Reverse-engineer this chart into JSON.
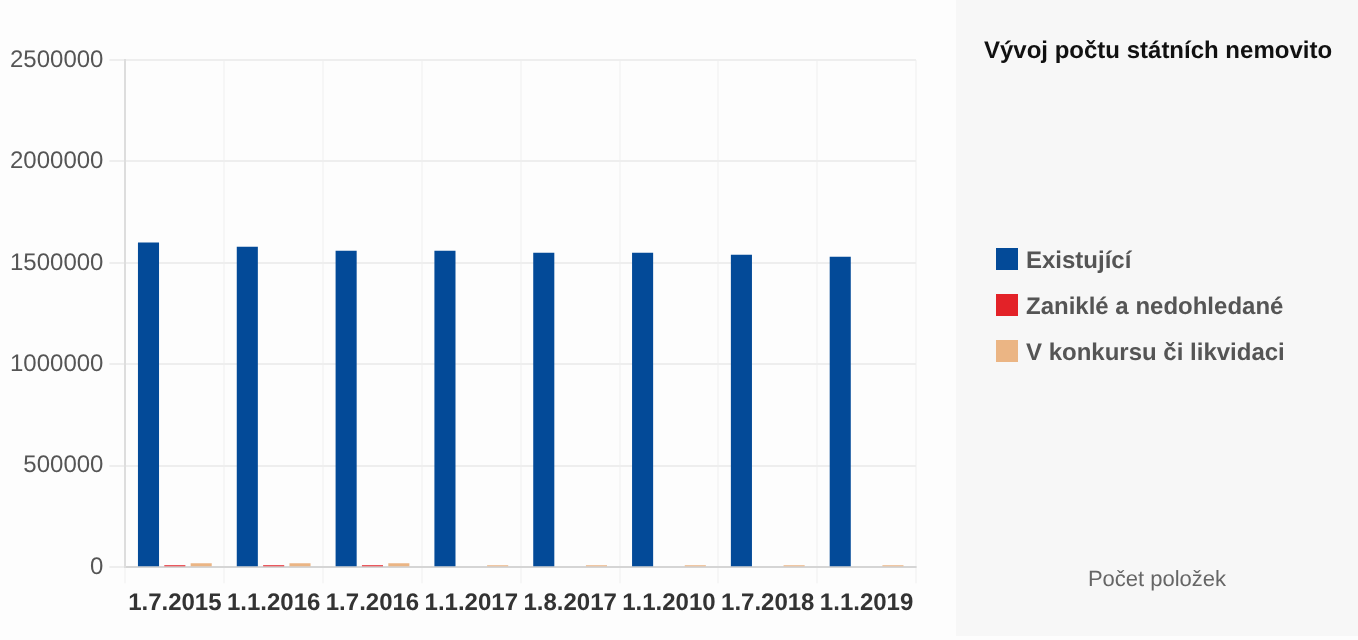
{
  "chart_data": {
    "type": "bar",
    "title": "Vývoj počtu státních nemovito",
    "categories": [
      "1.7.2015",
      "1.1.2016",
      "1.7.2016",
      "1.1.2017",
      "1.8.2017",
      "1.1.2010",
      "1.7.2018",
      "1.1.2019"
    ],
    "series": [
      {
        "name": "Existující",
        "color": "#034a98",
        "values": [
          1600000,
          1580000,
          1560000,
          1560000,
          1550000,
          1550000,
          1540000,
          1530000
        ]
      },
      {
        "name": "Zaniklé a nedohledané",
        "color": "#e32228",
        "values": [
          10000,
          10000,
          10000,
          0,
          0,
          0,
          0,
          0
        ]
      },
      {
        "name": "V konkursu či likvidaci",
        "color": "#ebb584",
        "values": [
          20000,
          20000,
          20000,
          10000,
          10000,
          10000,
          10000,
          10000
        ]
      }
    ],
    "ylim": [
      0,
      2500000
    ],
    "yticks": [
      0,
      500000,
      1000000,
      1500000,
      2000000,
      2500000
    ],
    "grid": true,
    "legend": "right",
    "annotations": [
      "Počet položek"
    ]
  }
}
